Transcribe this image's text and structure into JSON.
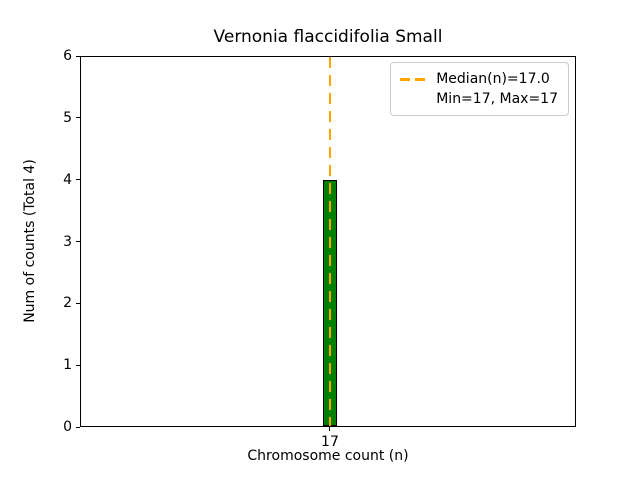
{
  "chart_data": {
    "type": "bar",
    "title": "Vernonia flaccidifolia Small",
    "xlabel": "Chromosome count (n)",
    "ylabel": "Num of counts    (Total 4)",
    "categories": [
      "17"
    ],
    "values": [
      4
    ],
    "total": 4,
    "ylim": [
      0,
      6
    ],
    "yticks": [
      0,
      1,
      2,
      3,
      4,
      5,
      6
    ],
    "xticks": [
      "17"
    ],
    "bar_color": "#008000",
    "bar_edge_color": "#000000",
    "grid": false,
    "median_line": {
      "x": 17,
      "value_label": "Median(n)=17.0",
      "color": "#FFA500",
      "style": "dashed"
    },
    "legend": {
      "position": "upper right",
      "line1": "Median(n)=17.0",
      "line2": "Min=17, Max=17"
    }
  }
}
